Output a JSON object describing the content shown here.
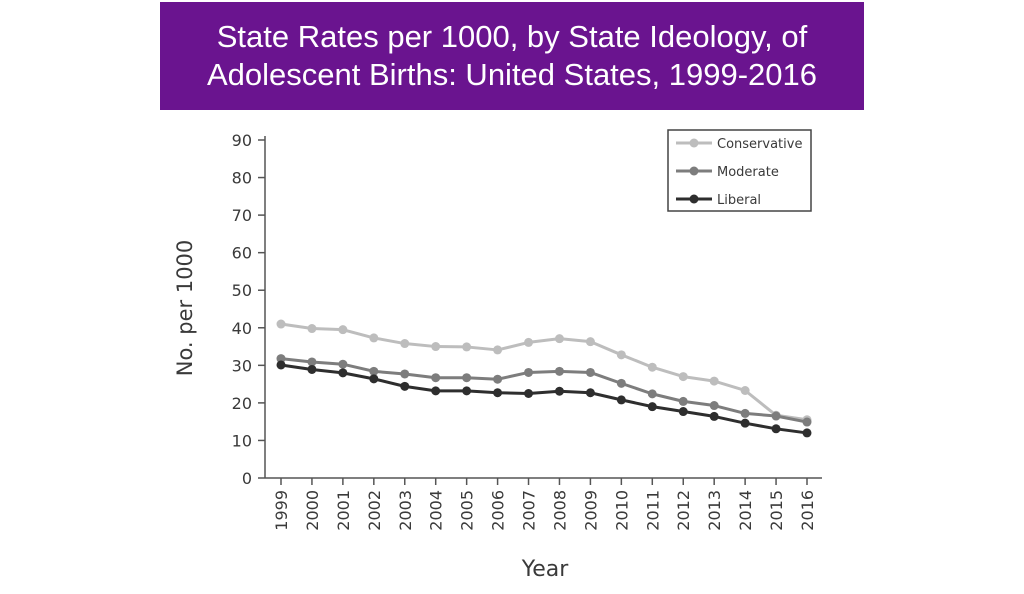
{
  "title": {
    "line1": "State Rates per 1000, by State Ideology, of",
    "line2": "Adolescent Births: United States, 1999-2016",
    "background_color": "#6a148f"
  },
  "chart_data": {
    "type": "line",
    "title": "State Rates per 1000, by State Ideology, of Adolescent Births: United States, 1999-2016",
    "xlabel": "Year",
    "ylabel": "No. per 1000",
    "x": [
      "1999",
      "2000",
      "2001",
      "2002",
      "2003",
      "2004",
      "2005",
      "2006",
      "2007",
      "2008",
      "2009",
      "2010",
      "2011",
      "2012",
      "2013",
      "2014",
      "2015",
      "2016"
    ],
    "ylim": [
      0,
      90
    ],
    "yticks": [
      0,
      10,
      20,
      30,
      40,
      50,
      60,
      70,
      80,
      90
    ],
    "grid": false,
    "legend_position": "top-right",
    "series": [
      {
        "name": "Conservative",
        "color": "#bdbdbd",
        "values": [
          41.0,
          39.8,
          39.5,
          37.3,
          35.8,
          35.0,
          34.9,
          34.1,
          36.1,
          37.1,
          36.3,
          32.8,
          29.5,
          27.0,
          25.8,
          23.3,
          16.7,
          15.5
        ]
      },
      {
        "name": "Moderate",
        "color": "#7d7d7d",
        "values": [
          31.8,
          30.9,
          30.3,
          28.4,
          27.7,
          26.7,
          26.7,
          26.3,
          28.1,
          28.4,
          28.1,
          25.2,
          22.4,
          20.4,
          19.3,
          17.2,
          16.5,
          14.9
        ]
      },
      {
        "name": "Liberal",
        "color": "#2e2e2e",
        "values": [
          30.1,
          28.9,
          28.0,
          26.4,
          24.4,
          23.2,
          23.2,
          22.7,
          22.5,
          23.1,
          22.7,
          20.8,
          19.0,
          17.7,
          16.4,
          14.6,
          13.1,
          12.0
        ]
      }
    ]
  }
}
